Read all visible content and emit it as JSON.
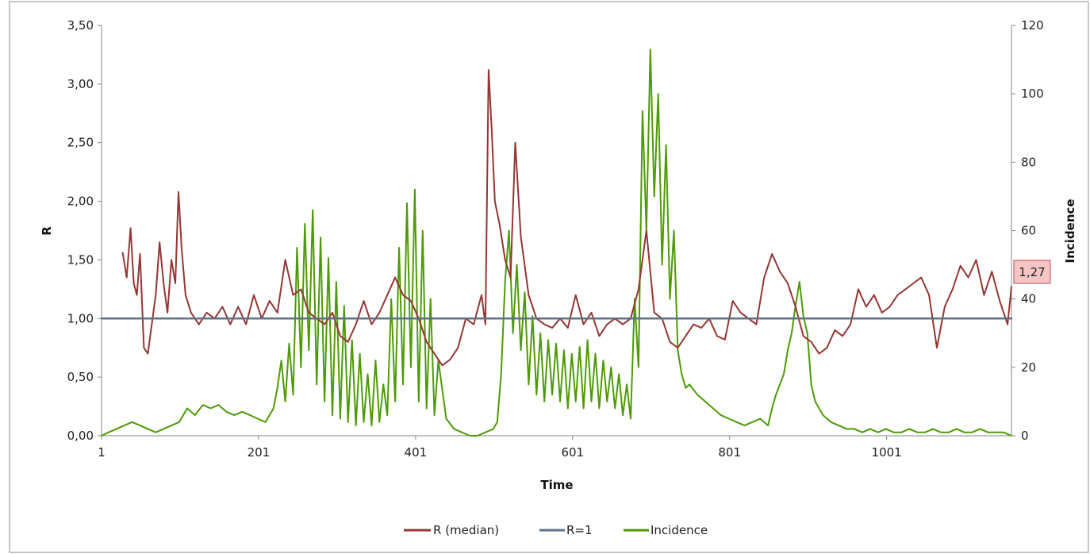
{
  "chart_data": {
    "type": "line",
    "title": "",
    "xlabel": "Time",
    "ylabel_left": "R",
    "ylabel_right": "Incidence",
    "xlim": [
      1,
      1160
    ],
    "ylim_left": [
      0,
      3.5
    ],
    "ylim_right": [
      0,
      120
    ],
    "x_ticks": [
      1,
      201,
      401,
      601,
      801,
      1001
    ],
    "x_tick_labels": [
      "1",
      "201",
      "401",
      "601",
      "801",
      "1001"
    ],
    "y_left_ticks": [
      0,
      0.5,
      1.0,
      1.5,
      2.0,
      2.5,
      3.0,
      3.5
    ],
    "y_left_tick_labels": [
      "0,00",
      "0,50",
      "1,00",
      "1,50",
      "2,00",
      "2,50",
      "3,00",
      "3,50"
    ],
    "y_right_ticks": [
      0,
      20,
      40,
      60,
      80,
      100,
      120
    ],
    "y_right_tick_labels": [
      "0",
      "20",
      "40",
      "60",
      "80",
      "100",
      "120"
    ],
    "grid": false,
    "legend_position": "bottom",
    "annotation": {
      "text": "1,27",
      "x": 1160,
      "y": 1.27,
      "axis": "left"
    },
    "series": [
      {
        "name": "R (median)",
        "axis": "left",
        "color": "#943634",
        "x": [
          1,
          10,
          15,
          20,
          25,
          28,
          33,
          38,
          42,
          46,
          50,
          55,
          60,
          65,
          70,
          75,
          80,
          85,
          90,
          95,
          99,
          103,
          108,
          115,
          125,
          135,
          145,
          155,
          165,
          175,
          185,
          195,
          205,
          215,
          225,
          235,
          245,
          255,
          265,
          275,
          285,
          295,
          305,
          315,
          325,
          335,
          345,
          355,
          365,
          375,
          385,
          395,
          405,
          415,
          425,
          435,
          445,
          455,
          465,
          475,
          485,
          490,
          494,
          498,
          502,
          508,
          515,
          522,
          528,
          535,
          545,
          555,
          565,
          575,
          585,
          595,
          605,
          615,
          625,
          635,
          645,
          655,
          665,
          675,
          685,
          695,
          705,
          715,
          725,
          735,
          745,
          755,
          765,
          775,
          785,
          795,
          805,
          815,
          825,
          835,
          845,
          855,
          865,
          875,
          885,
          895,
          905,
          915,
          925,
          935,
          945,
          955,
          965,
          975,
          985,
          995,
          1005,
          1015,
          1025,
          1035,
          1045,
          1055,
          1065,
          1075,
          1085,
          1095,
          1105,
          1115,
          1125,
          1135,
          1145,
          1155,
          1160
        ],
        "values": [
          null,
          null,
          null,
          null,
          null,
          1.56,
          1.35,
          1.77,
          1.3,
          1.2,
          1.55,
          0.75,
          0.7,
          0.95,
          1.2,
          1.65,
          1.3,
          1.05,
          1.5,
          1.3,
          2.08,
          1.6,
          1.2,
          1.05,
          0.95,
          1.05,
          1.0,
          1.1,
          0.95,
          1.1,
          0.95,
          1.2,
          1.0,
          1.15,
          1.05,
          1.5,
          1.2,
          1.25,
          1.05,
          1.0,
          0.95,
          1.05,
          0.85,
          0.8,
          0.95,
          1.15,
          0.95,
          1.05,
          1.2,
          1.35,
          1.2,
          1.15,
          1.0,
          0.8,
          0.7,
          0.6,
          0.65,
          0.75,
          1.0,
          0.95,
          1.2,
          0.95,
          3.12,
          2.6,
          2.0,
          1.8,
          1.5,
          1.35,
          2.5,
          1.7,
          1.2,
          1.0,
          0.95,
          0.92,
          1.0,
          0.92,
          1.2,
          0.95,
          1.05,
          0.85,
          0.95,
          1.0,
          0.95,
          1.0,
          1.25,
          1.75,
          1.05,
          1.0,
          0.8,
          0.75,
          0.85,
          0.95,
          0.92,
          1.0,
          0.85,
          0.82,
          1.15,
          1.05,
          1.0,
          0.95,
          1.35,
          1.55,
          1.4,
          1.3,
          1.1,
          0.85,
          0.8,
          0.7,
          0.75,
          0.9,
          0.85,
          0.95,
          1.25,
          1.1,
          1.2,
          1.05,
          1.1,
          1.2,
          1.25,
          1.3,
          1.35,
          1.2,
          0.75,
          1.1,
          1.25,
          1.45,
          1.35,
          1.5,
          1.2,
          1.4,
          1.15,
          0.95,
          1.27
        ]
      },
      {
        "name": "R=1",
        "axis": "left",
        "color": "#5f7286",
        "x": [
          1,
          1160
        ],
        "values": [
          1.0,
          1.0
        ]
      },
      {
        "name": "Incidence",
        "axis": "right",
        "color": "#4e9a06",
        "x": [
          1,
          10,
          20,
          30,
          40,
          50,
          60,
          70,
          80,
          90,
          100,
          110,
          120,
          130,
          140,
          150,
          160,
          170,
          180,
          190,
          200,
          210,
          220,
          225,
          230,
          235,
          240,
          245,
          250,
          255,
          260,
          265,
          270,
          275,
          280,
          285,
          290,
          295,
          300,
          305,
          310,
          315,
          320,
          325,
          330,
          335,
          340,
          345,
          350,
          355,
          360,
          365,
          370,
          375,
          380,
          385,
          390,
          395,
          400,
          405,
          410,
          415,
          420,
          425,
          430,
          440,
          450,
          460,
          470,
          480,
          490,
          500,
          505,
          510,
          515,
          520,
          525,
          530,
          535,
          540,
          545,
          550,
          555,
          560,
          565,
          570,
          575,
          580,
          585,
          590,
          595,
          600,
          605,
          610,
          615,
          620,
          625,
          630,
          635,
          640,
          645,
          650,
          655,
          660,
          665,
          670,
          675,
          680,
          685,
          690,
          695,
          700,
          705,
          710,
          715,
          720,
          725,
          730,
          735,
          740,
          745,
          750,
          760,
          770,
          780,
          790,
          800,
          810,
          820,
          830,
          840,
          850,
          855,
          860,
          865,
          870,
          875,
          880,
          885,
          890,
          895,
          900,
          905,
          910,
          920,
          930,
          940,
          950,
          960,
          970,
          980,
          990,
          1000,
          1010,
          1020,
          1030,
          1040,
          1050,
          1060,
          1070,
          1080,
          1090,
          1100,
          1110,
          1120,
          1130,
          1140,
          1150,
          1160
        ],
        "values": [
          0,
          1,
          2,
          3,
          4,
          3,
          2,
          1,
          2,
          3,
          4,
          8,
          6,
          9,
          8,
          9,
          7,
          6,
          7,
          6,
          5,
          4,
          8,
          14,
          22,
          10,
          27,
          12,
          55,
          20,
          62,
          25,
          66,
          15,
          58,
          10,
          52,
          6,
          45,
          5,
          38,
          4,
          28,
          3,
          24,
          4,
          18,
          3,
          22,
          4,
          15,
          6,
          40,
          10,
          55,
          15,
          68,
          20,
          72,
          10,
          60,
          8,
          40,
          6,
          22,
          5,
          2,
          1,
          0,
          0,
          1,
          2,
          4,
          18,
          45,
          60,
          30,
          50,
          25,
          42,
          15,
          35,
          12,
          30,
          10,
          28,
          12,
          27,
          10,
          25,
          8,
          24,
          10,
          26,
          8,
          28,
          10,
          24,
          8,
          22,
          10,
          20,
          8,
          18,
          6,
          15,
          5,
          40,
          20,
          95,
          60,
          113,
          70,
          100,
          50,
          85,
          40,
          60,
          25,
          18,
          14,
          15,
          12,
          10,
          8,
          6,
          5,
          4,
          3,
          4,
          5,
          3,
          8,
          12,
          15,
          18,
          25,
          30,
          38,
          45,
          35,
          30,
          15,
          10,
          6,
          4,
          3,
          2,
          2,
          1,
          2,
          1,
          2,
          1,
          1,
          2,
          1,
          1,
          2,
          1,
          1,
          2,
          1,
          1,
          2,
          1,
          1,
          1,
          0
        ]
      }
    ]
  }
}
